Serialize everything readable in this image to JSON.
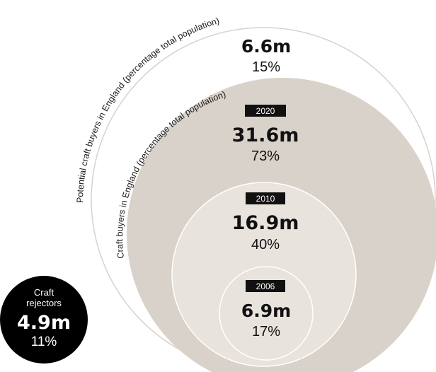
{
  "colors": {
    "outer_ring_stroke": "#d9d2ca",
    "craft_buyers_fill": "#d9d2ca",
    "inner_fill": "#e8e3dd",
    "inner_stroke": "#ffffff",
    "year_badge": "#111111",
    "rejectors_fill": "#000000"
  },
  "potential": {
    "arc_label": "Potential craft buyers in England (percentage total population)",
    "value": "6.6m",
    "percent": "15%"
  },
  "craft_buyers": {
    "arc_label": "Craft buyers in England (percentage total population)"
  },
  "years": [
    {
      "year": "2020",
      "value": "31.6m",
      "percent": "73%"
    },
    {
      "year": "2010",
      "value": "16.9m",
      "percent": "40%"
    },
    {
      "year": "2006",
      "value": "6.9m",
      "percent": "17%"
    }
  ],
  "rejectors": {
    "label_line1": "Craft",
    "label_line2": "rejectors",
    "value": "4.9m",
    "percent": "11%"
  }
}
